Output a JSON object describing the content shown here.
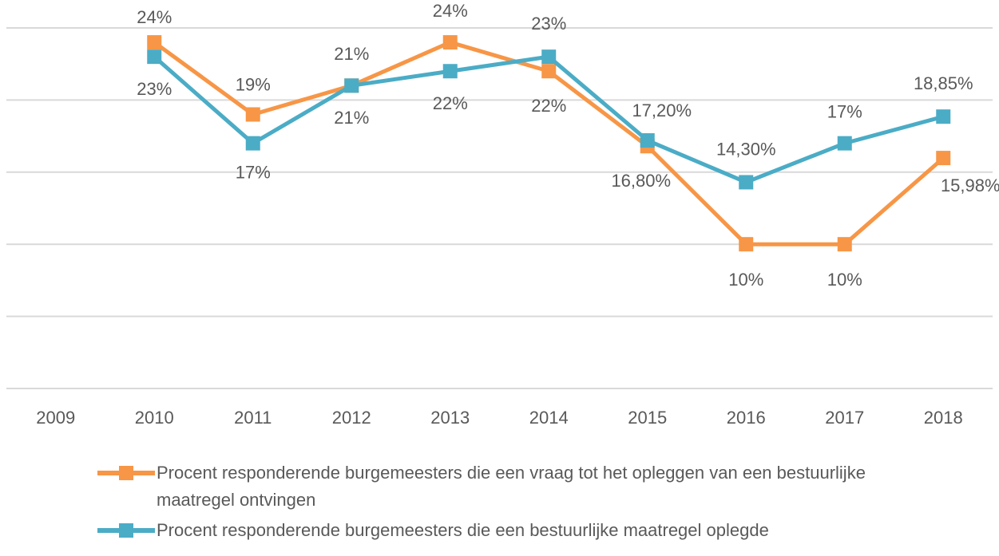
{
  "chart_data": {
    "type": "line",
    "categories": [
      "2009",
      "2010",
      "2011",
      "2012",
      "2013",
      "2014",
      "2015",
      "2016",
      "2017",
      "2018"
    ],
    "series": [
      {
        "name": "Procent responderende burgemeesters die een vraag tot het opleggen van een bestuurlijke maatregel ontvingen",
        "color": "#f79646",
        "values": [
          null,
          24,
          19,
          21,
          24,
          22,
          16.8,
          10,
          10,
          15.98
        ],
        "value_labels": [
          null,
          "24%",
          "19%",
          "21%",
          "24%",
          "22%",
          "16,80%",
          "10%",
          "10%",
          "15,98%"
        ]
      },
      {
        "name": "Procent responderende burgemeesters die een bestuurlijke maatregel oplegde",
        "color": "#4bacc6",
        "values": [
          null,
          23,
          17,
          21,
          22,
          23,
          17.2,
          14.3,
          17,
          18.85
        ],
        "value_labels": [
          null,
          "23%",
          "17%",
          "21%",
          "22%",
          "23%",
          "17,20%",
          "14,30%",
          "17%",
          "18,85%"
        ]
      }
    ],
    "ylim": [
      0,
      25
    ],
    "yticks": [
      0,
      5,
      10,
      15,
      20,
      25
    ],
    "grid": true
  }
}
